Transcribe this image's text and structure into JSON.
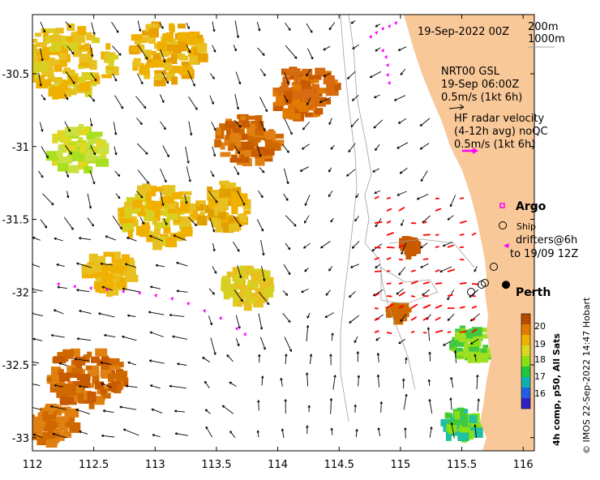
{
  "map": {
    "date_title": "19-Sep-2022 00Z",
    "depth_labels": [
      "200m",
      "1000m"
    ],
    "lon_ticks": [
      112,
      112.5,
      113,
      113.5,
      114,
      114.5,
      115,
      115.5,
      116
    ],
    "lat_ticks": [
      -30.5,
      -31,
      -31.5,
      -32,
      -32.5,
      -33
    ],
    "lon_tick_labels": [
      "112",
      "112.5",
      "113",
      "113.5",
      "114",
      "114.5",
      "115",
      "115.5",
      "116"
    ],
    "lat_tick_labels": [
      "-30.5",
      "-31",
      "-31.5",
      "-32",
      "-32.5",
      "-33"
    ],
    "lon_range": [
      112,
      116.3
    ],
    "lat_range": [
      -33.1,
      -30.0
    ],
    "nrt_line1": "NRT00 GSL",
    "nrt_line2": "19-Sep 06:00Z",
    "nrt_line3": "0.5m/s (1kt 6h)",
    "hf_line1": "HF radar velocity",
    "hf_line2": "(4-12h avg) noQC",
    "hf_line3": "0.5m/s (1kt 6h)",
    "argo_label": "Argo",
    "ship_label": "Ship",
    "drifters_line1": "drifters@6h",
    "drifters_line2": "to 19/09 12Z",
    "city_label": "Perth",
    "city": {
      "lon": 115.86,
      "lat": -31.95
    },
    "colorbar_ticks": [
      "20",
      "19",
      "18",
      "17",
      "16"
    ],
    "colorbar_title": "4h comp, p50, All Sats",
    "credit": "© IMOS 22-Sep-2022 14:47 Hobart",
    "colors": {
      "land": "#f9c898",
      "argo": "#ff00ff",
      "hf": "#ff0000",
      "drifter": "#ff00ff",
      "ship": "#000000"
    }
  }
}
